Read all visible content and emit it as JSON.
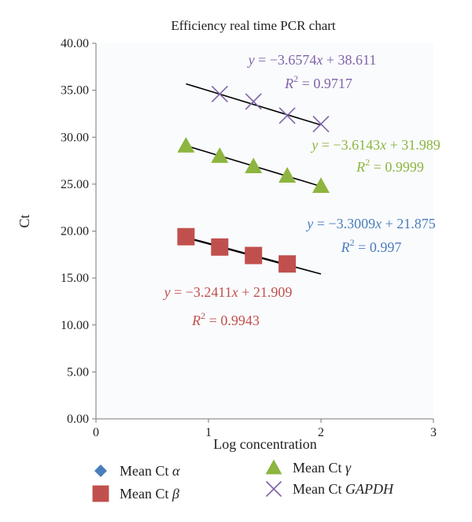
{
  "chart_data": {
    "type": "scatter",
    "title": "Efficiency real time PCR chart",
    "xlabel": "Log concentration",
    "ylabel": "Ct",
    "xlim": [
      0,
      3
    ],
    "ylim": [
      0,
      40
    ],
    "x_ticks": [
      "0",
      "1",
      "2",
      "3"
    ],
    "y_ticks": [
      "0.00",
      "5.00",
      "10.00",
      "15.00",
      "20.00",
      "25.00",
      "30.00",
      "35.00",
      "40.00"
    ],
    "legend_position": "bottom",
    "series": [
      {
        "name_prefix": "Mean Ct ",
        "name_symbol": "α",
        "marker": "diamond",
        "color": "#4a7ebb",
        "x": [
          0.8,
          1.1,
          1.4,
          1.7
        ],
        "y": [
          19.4,
          18.1,
          17.2,
          16.3
        ],
        "trendline": null
      },
      {
        "name_prefix": "Mean Ct ",
        "name_symbol": "β",
        "marker": "square",
        "color": "#c0504d",
        "x": [
          0.8,
          1.1,
          1.4,
          1.7
        ],
        "y": [
          19.4,
          18.3,
          17.4,
          16.5
        ],
        "trendline": {
          "slope": -3.2411,
          "intercept": 21.909,
          "r2": 0.9943,
          "x_range": [
            0.8,
            2.0
          ],
          "color": "#000000",
          "equation": {
            "pre": "y = −3.2411",
            "var": "x",
            "post": " + 21.909"
          },
          "r2_label": {
            "base": "R",
            "exp": "2",
            "rest": " = 0.9943"
          }
        }
      },
      {
        "name_prefix": "Mean Ct ",
        "name_symbol": "γ",
        "marker": "triangle",
        "color": "#8db53f",
        "x": [
          0.8,
          1.1,
          1.4,
          1.7,
          2.0
        ],
        "y": [
          29.1,
          28.0,
          26.9,
          25.9,
          24.8
        ],
        "trendline": {
          "slope": -3.6143,
          "intercept": 31.989,
          "r2": 0.9999,
          "x_range": [
            0.8,
            2.0
          ],
          "color": "#000000",
          "equation": {
            "pre": "y = −3.6143",
            "var": "x",
            "post": " + 31.989"
          },
          "r2_label": {
            "base": "R",
            "exp": "2",
            "rest": " = 0.9999"
          }
        }
      },
      {
        "name_prefix": "Mean Ct ",
        "name_symbol": "GAPDH",
        "marker": "x",
        "color": "#7f63a8",
        "x": [
          1.1,
          1.4,
          1.7,
          2.0
        ],
        "y": [
          34.6,
          33.8,
          32.3,
          31.4
        ],
        "trendline": {
          "slope": -3.6574,
          "intercept": 38.611,
          "r2": 0.9717,
          "x_range": [
            0.8,
            2.0
          ],
          "color": "#000000",
          "equation": {
            "pre": "y = −3.6574",
            "var": "x",
            "post": " + 38.611"
          },
          "r2_label": {
            "base": "R",
            "exp": "2",
            "rest": " = 0.9717"
          }
        }
      }
    ],
    "annotations": [
      {
        "color": "#4a7ebb",
        "equation": {
          "pre": "y = −3.3009",
          "var": "x",
          "post": " + 21.875"
        },
        "r2_label": {
          "base": "R",
          "exp": "2",
          "rest": " = 0.997"
        }
      }
    ]
  }
}
